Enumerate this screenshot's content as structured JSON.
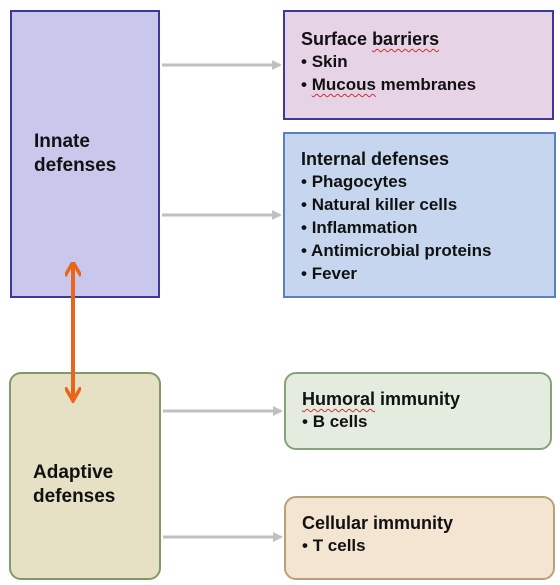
{
  "innate": {
    "title_line1": "Innate",
    "title_line2": "defenses"
  },
  "adaptive": {
    "title_line1": "Adaptive",
    "title_line2": "defenses"
  },
  "surface_barriers": {
    "heading_word1": "Surface",
    "heading_word2": "barriers",
    "items": [
      "Skin",
      "Mucous membranes"
    ]
  },
  "internal_defenses": {
    "heading": "Internal defenses",
    "items": [
      "Phagocytes",
      "Natural killer cells",
      "Inflammation",
      "Antimicrobial proteins",
      "Fever"
    ]
  },
  "humoral_immunity": {
    "heading_word1": "Humoral",
    "heading_word2": "immunity",
    "items": [
      "B cells"
    ]
  },
  "cellular_immunity": {
    "heading": "Cellular immunity",
    "items": [
      "T cells"
    ]
  },
  "colors": {
    "innate_fill": "#c9c8ec",
    "adaptive_fill": "#e6e1c4",
    "surface_fill": "#e6d3e6",
    "internal_fill": "#c7d6ef",
    "humoral_fill": "#e4ece0",
    "cellular_fill": "#f3e5d2",
    "connector_arrow": "#c0c0c0",
    "double_arrow": "#e8651a"
  },
  "bullet": "•"
}
